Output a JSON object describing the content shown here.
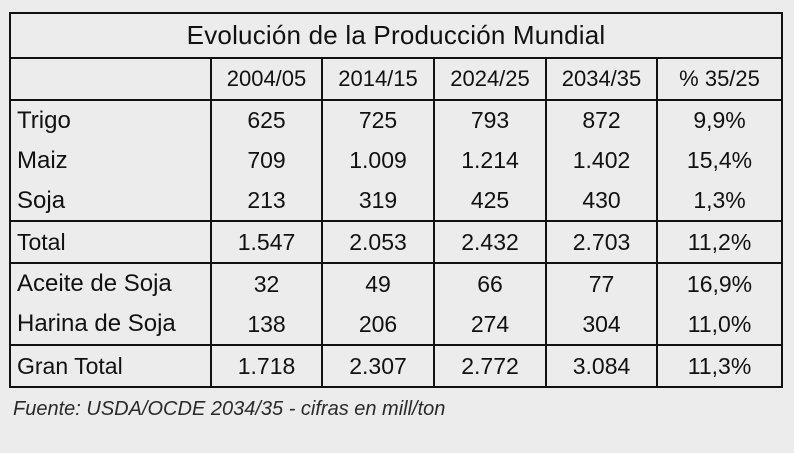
{
  "table": {
    "title": "Evolución de la Producción Mundial",
    "columns": [
      "2004/05",
      "2014/15",
      "2024/25",
      "2034/35",
      "% 35/25"
    ],
    "groups": [
      {
        "rows": [
          {
            "label": "Trigo",
            "values": [
              "625",
              "725",
              "793",
              "872",
              "9,9%"
            ]
          },
          {
            "label": "Maiz",
            "values": [
              "709",
              "1.009",
              "1.214",
              "1.402",
              "15,4%"
            ]
          },
          {
            "label": "Soja",
            "values": [
              "213",
              "319",
              "425",
              "430",
              "1,3%"
            ]
          }
        ],
        "total": {
          "label": "Total",
          "values": [
            "1.547",
            "2.053",
            "2.432",
            "2.703",
            "11,2%"
          ]
        }
      },
      {
        "rows": [
          {
            "label": "Aceite de Soja",
            "values": [
              "32",
              "49",
              "66",
              "77",
              "16,9%"
            ]
          },
          {
            "label": "Harina de Soja",
            "values": [
              "138",
              "206",
              "274",
              "304",
              "11,0%"
            ]
          }
        ],
        "total": {
          "label": "Gran Total",
          "values": [
            "1.718",
            "2.307",
            "2.772",
            "3.084",
            "11,3%"
          ]
        }
      }
    ]
  },
  "source_note": "Fuente: USDA/OCDE 2034/35 - cifras en mill/ton"
}
